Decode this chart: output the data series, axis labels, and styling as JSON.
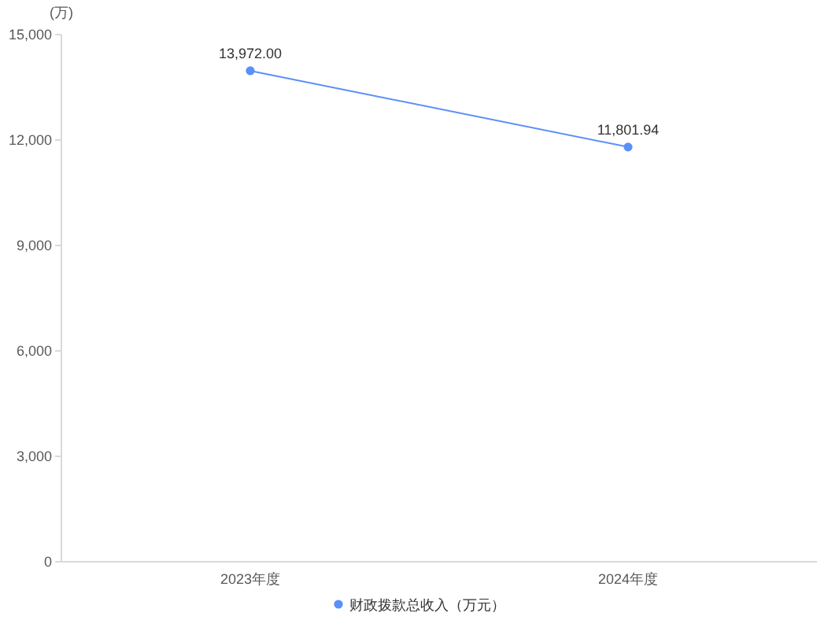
{
  "chart_data": {
    "type": "line",
    "ylabel": "(万)",
    "categories": [
      "2023年度",
      "2024年度"
    ],
    "series": [
      {
        "name": "财政拨款总收入（万元）",
        "color": "#5b8ff9",
        "values": [
          13972.0,
          11801.94
        ],
        "value_labels": [
          "13,972.00",
          "11,801.94"
        ]
      }
    ],
    "ylim": [
      0,
      15000
    ],
    "yticks": [
      0,
      {
        "value": 3000,
        "label": "3,000"
      },
      {
        "value": 6000,
        "label": "6,000"
      },
      {
        "value": 9000,
        "label": "9,000"
      },
      {
        "value": 12000,
        "label": "12,000"
      },
      {
        "value": 15000,
        "label": "15,000"
      }
    ],
    "legend": "bottom",
    "marker": "circle",
    "line_style": "solid"
  }
}
